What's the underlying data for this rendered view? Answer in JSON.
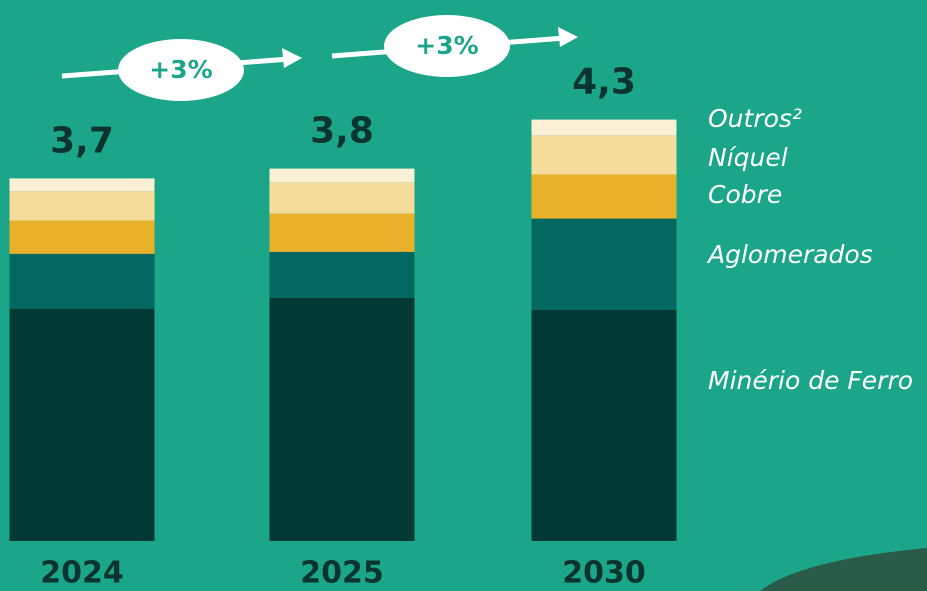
{
  "chart_data": {
    "type": "bar",
    "stacked": true,
    "categories": [
      "2024",
      "2025",
      "2030"
    ],
    "series": [
      {
        "name": "Minério de Ferro",
        "color": "#013a35",
        "values": [
          2.37,
          2.48,
          2.36
        ]
      },
      {
        "name": "Aglomerados",
        "color": "#036860",
        "values": [
          0.56,
          0.47,
          0.93
        ]
      },
      {
        "name": "Cobre",
        "color": "#e9b12a",
        "values": [
          0.34,
          0.39,
          0.45
        ]
      },
      {
        "name": "Níquel",
        "color": "#f5dc9b",
        "values": [
          0.3,
          0.32,
          0.4
        ]
      },
      {
        "name": "Outros²",
        "color": "#faf0d6",
        "values": [
          0.13,
          0.14,
          0.16
        ]
      }
    ],
    "totals": {
      "values": [
        3.7,
        3.8,
        4.3
      ],
      "value_labels": [
        "3,7",
        "3,8",
        "4,3"
      ]
    },
    "annotations": [
      "+3%",
      "+3%"
    ]
  }
}
